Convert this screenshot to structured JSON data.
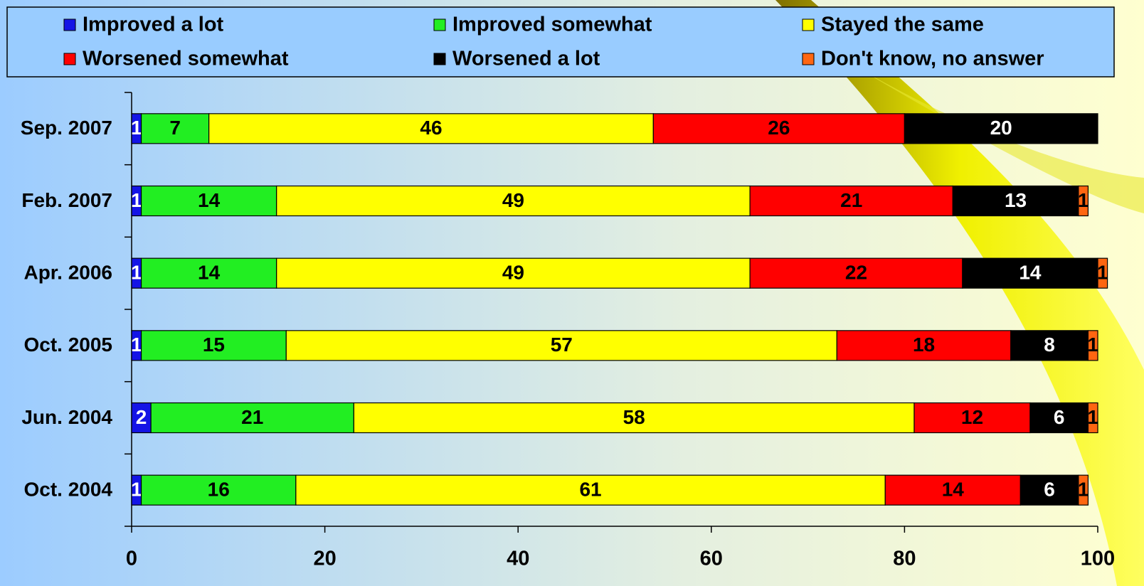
{
  "chart_data": {
    "type": "stacked-bar-horizontal",
    "categories": [
      "Sep. 2007",
      "Feb. 2007",
      "Apr. 2006",
      "Oct. 2005",
      "Jun. 2004",
      "Oct. 2004"
    ],
    "series": [
      {
        "name": "Improved a lot",
        "color": "#1414e6",
        "values": [
          1,
          1,
          1,
          1,
          2,
          1
        ]
      },
      {
        "name": "Improved somewhat",
        "color": "#22ee22",
        "values": [
          7,
          14,
          14,
          15,
          21,
          16
        ]
      },
      {
        "name": "Stayed the same",
        "color": "#ffff00",
        "values": [
          46,
          49,
          49,
          57,
          58,
          61
        ]
      },
      {
        "name": "Worsened somewhat",
        "color": "#ff0000",
        "values": [
          26,
          21,
          22,
          18,
          12,
          14
        ]
      },
      {
        "name": "Worsened a lot",
        "color": "#000000",
        "values": [
          20,
          13,
          14,
          8,
          6,
          6
        ]
      },
      {
        "name": "Don't know, no answer",
        "color": "#ff6611",
        "values": [
          null,
          1,
          1,
          1,
          1,
          1
        ]
      }
    ],
    "xlim": [
      0,
      100
    ],
    "xticks": [
      0,
      20,
      40,
      60,
      80,
      100
    ]
  }
}
